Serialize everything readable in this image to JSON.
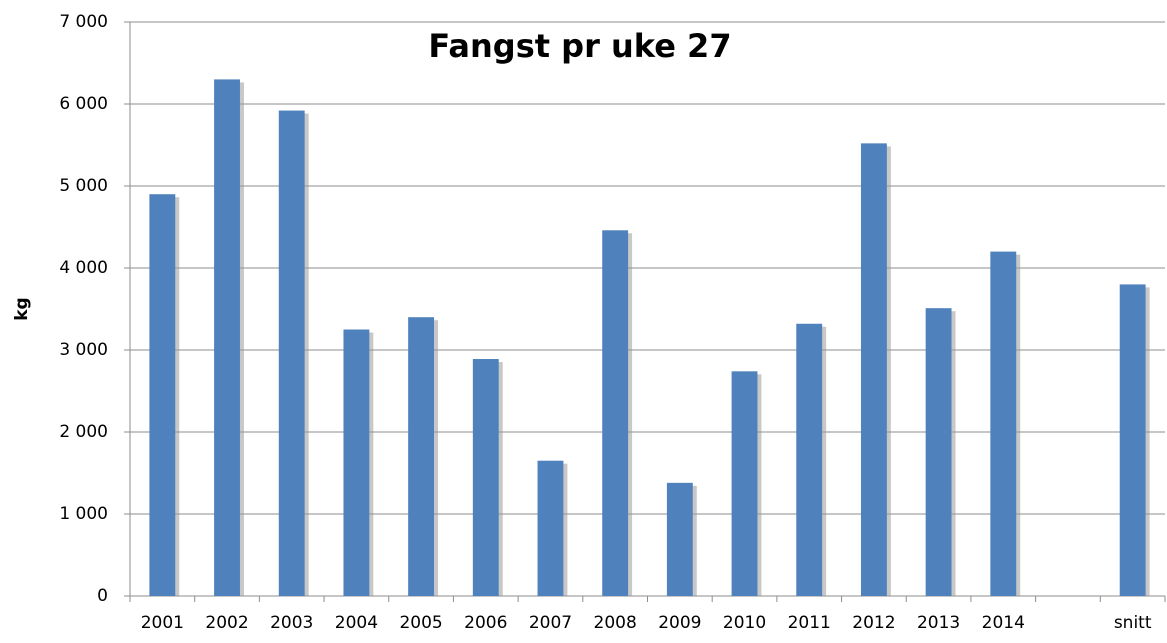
{
  "chart_data": {
    "type": "bar",
    "title": "Fangst pr uke 27",
    "y_label": "kg",
    "categories": [
      "2001",
      "2002",
      "2003",
      "2004",
      "2005",
      "2006",
      "2007",
      "2008",
      "2009",
      "2010",
      "2011",
      "2012",
      "2013",
      "2014",
      null,
      "snitt"
    ],
    "values": [
      4900,
      6300,
      5920,
      3250,
      3400,
      2890,
      1650,
      4460,
      1380,
      2740,
      3320,
      5520,
      3510,
      4200,
      null,
      3800
    ],
    "color": "#4f81bd",
    "ylim": [
      0,
      7000
    ],
    "yticks": [
      0,
      {
        "value": 1000,
        "label": "1 000"
      },
      {
        "value": 2000,
        "label": "2 000"
      },
      {
        "value": 3000,
        "label": "3 000"
      },
      {
        "value": 4000,
        "label": "4 000"
      },
      {
        "value": 5000,
        "label": "5 000"
      },
      {
        "value": 6000,
        "label": "6 000"
      },
      {
        "value": 7000,
        "label": "7 000"
      }
    ],
    "grid": true
  }
}
